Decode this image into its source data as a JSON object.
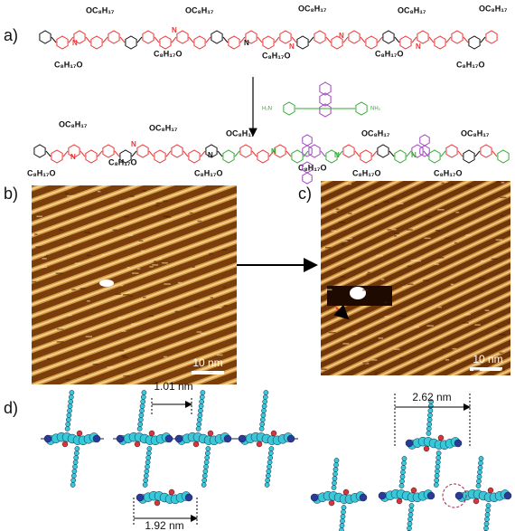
{
  "panels": {
    "a": "a)",
    "b": "b)",
    "c": "c)",
    "d": "d)"
  },
  "structure_1": {
    "upper": [
      "OC₈H₁₇",
      "OC₈H₁₇",
      "OC₈H₁₇",
      "OC₈H₁₇",
      "OC₈H₁₇"
    ],
    "lower": [
      "C₈H₁₇O",
      "C₈H₁₇O",
      "C₈H₁₇O",
      "C₈H₁₇O",
      "C₈H₁₇O"
    ],
    "atom": "N"
  },
  "reagent": {
    "left": "H₂N",
    "right": "NH₂"
  },
  "structure_2": {
    "upper": [
      "OC₈H₁₇",
      "OC₈H₁₇",
      "OC₈H₁₇",
      "OC₈H₁₇",
      "OC₈H₁₇",
      "OC₈H₁₇"
    ],
    "lower": [
      "C₈H₁₇O",
      "C₈H₁₇O",
      "C₈H₁₇O",
      "C₈H₁₇O",
      "C₈H₁₇O",
      "C₈H₁₇O"
    ],
    "atom": "N"
  },
  "scale_bars": {
    "b": "10 nm",
    "c": "10 nm"
  },
  "measurements": [
    "1.01 nm",
    "2.62 nm",
    "1.92 nm"
  ]
}
